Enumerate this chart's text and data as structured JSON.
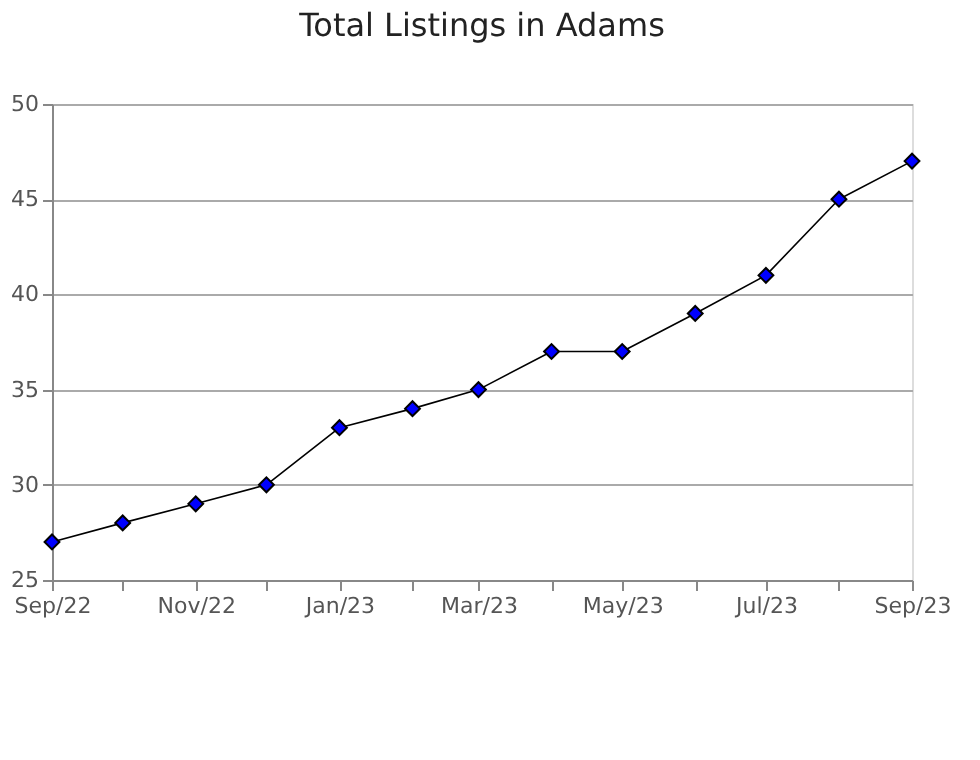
{
  "chart_data": {
    "type": "line",
    "title": "Total Listings in Adams",
    "x": [
      "2022-09",
      "2022-10",
      "2022-11",
      "2022-12",
      "2023-01",
      "2023-02",
      "2023-03",
      "2023-04",
      "2023-05",
      "2023-06",
      "2023-07",
      "2023-08",
      "2023-09"
    ],
    "series": [
      {
        "color": "#0000ff",
        "values": [
          27,
          28,
          29,
          30,
          33,
          34,
          35,
          37,
          37,
          39,
          41,
          45,
          47
        ]
      }
    ],
    "xlim": [
      "2022-09",
      "2023-09"
    ],
    "xticks": [
      {
        "value": "2022-09",
        "label": "Sep/22"
      },
      {
        "value": "2022-10",
        "label": null
      },
      {
        "value": "2022-11",
        "label": "Nov/22"
      },
      {
        "value": "2022-12",
        "label": null
      },
      {
        "value": "2023-01",
        "label": "Jan/23"
      },
      {
        "value": "2023-02",
        "label": null
      },
      {
        "value": "2023-03",
        "label": "Mar/23"
      },
      {
        "value": "2023-04",
        "label": null
      },
      {
        "value": "2023-05",
        "label": "May/23"
      },
      {
        "value": "2023-06",
        "label": null
      },
      {
        "value": "2023-07",
        "label": "Jul/23"
      },
      {
        "value": "2023-08",
        "label": null
      },
      {
        "value": "2023-09",
        "label": "Sep/23"
      }
    ],
    "ylim": [
      25,
      50
    ],
    "yticks": [
      25,
      30,
      35,
      40,
      45,
      50
    ],
    "grid": "y",
    "marker": "diamond",
    "line_style": "solid"
  }
}
